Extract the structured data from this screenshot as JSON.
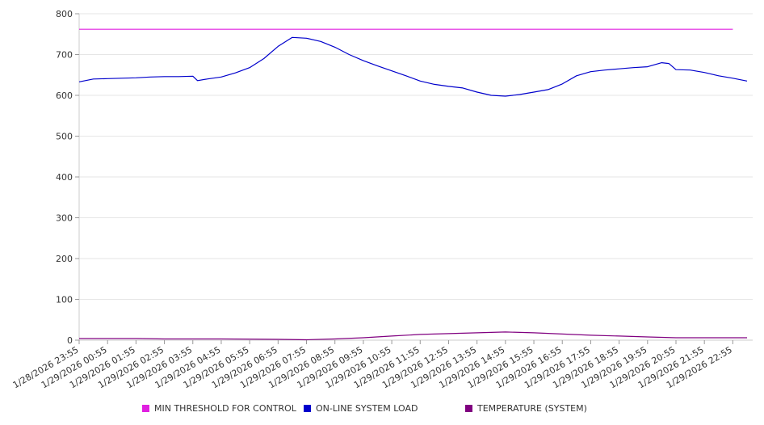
{
  "chart_data": {
    "type": "line",
    "title": "",
    "xlabel": "",
    "ylabel": "",
    "ylim": [
      0,
      800
    ],
    "yticks": [
      0,
      100,
      200,
      300,
      400,
      500,
      600,
      700,
      800
    ],
    "grid": true,
    "legend_position": "bottom",
    "x_tick_labels": [
      "1/28/2026 23:55",
      "1/29/2026 00:55",
      "1/29/2026 01:55",
      "1/29/2026 02:55",
      "1/29/2026 03:55",
      "1/29/2026 04:55",
      "1/29/2026 05:55",
      "1/29/2026 06:55",
      "1/29/2026 07:55",
      "1/29/2026 08:55",
      "1/29/2026 09:55",
      "1/29/2026 10:55",
      "1/29/2026 11:55",
      "1/29/2026 12:55",
      "1/29/2026 13:55",
      "1/29/2026 14:55",
      "1/29/2026 15:55",
      "1/29/2026 16:55",
      "1/29/2026 17:55",
      "1/29/2026 18:55",
      "1/29/2026 19:55",
      "1/29/2026 20:55",
      "1/29/2026 21:55",
      "1/29/2026 22:55"
    ],
    "series": [
      {
        "name": "MIN THRESHOLD FOR CONTROL",
        "color": "#e020e0",
        "x": [
          "1/28/2026 23:55",
          "1/29/2026 22:55"
        ],
        "y": [
          762,
          762
        ]
      },
      {
        "name": "ON-LINE SYSTEM LOAD",
        "color": "#0000cc",
        "x": [
          "1/28/2026 23:55",
          "1/29/2026 00:25",
          "1/29/2026 00:55",
          "1/29/2026 01:25",
          "1/29/2026 01:55",
          "1/29/2026 02:25",
          "1/29/2026 02:55",
          "1/29/2026 03:25",
          "1/29/2026 03:55",
          "1/29/2026 04:05",
          "1/29/2026 04:25",
          "1/29/2026 04:55",
          "1/29/2026 05:25",
          "1/29/2026 05:55",
          "1/29/2026 06:25",
          "1/29/2026 06:55",
          "1/29/2026 07:25",
          "1/29/2026 07:55",
          "1/29/2026 08:25",
          "1/29/2026 08:55",
          "1/29/2026 09:25",
          "1/29/2026 09:55",
          "1/29/2026 10:25",
          "1/29/2026 10:55",
          "1/29/2026 11:25",
          "1/29/2026 11:55",
          "1/29/2026 12:25",
          "1/29/2026 12:55",
          "1/29/2026 13:25",
          "1/29/2026 13:55",
          "1/29/2026 14:25",
          "1/29/2026 14:55",
          "1/29/2026 15:25",
          "1/29/2026 15:55",
          "1/29/2026 16:25",
          "1/29/2026 16:55",
          "1/29/2026 17:25",
          "1/29/2026 17:55",
          "1/29/2026 18:25",
          "1/29/2026 18:55",
          "1/29/2026 19:25",
          "1/29/2026 19:55",
          "1/29/2026 20:25",
          "1/29/2026 20:40",
          "1/29/2026 20:55",
          "1/29/2026 21:25",
          "1/29/2026 21:55",
          "1/29/2026 22:25",
          "1/29/2026 22:55",
          "1/29/2026 23:25"
        ],
        "y": [
          633,
          640,
          641,
          642,
          643,
          645,
          646,
          646,
          647,
          636,
          640,
          645,
          655,
          668,
          690,
          720,
          742,
          740,
          732,
          718,
          700,
          685,
          672,
          660,
          648,
          635,
          627,
          622,
          618,
          608,
          600,
          598,
          602,
          608,
          614,
          628,
          648,
          658,
          662,
          665,
          668,
          670,
          680,
          678,
          663,
          662,
          656,
          648,
          642,
          635
        ]
      },
      {
        "name": "TEMPERATURE (SYSTEM)",
        "color": "#800080",
        "x": [
          "1/28/2026 23:55",
          "1/29/2026 01:55",
          "1/29/2026 02:55",
          "1/29/2026 04:55",
          "1/29/2026 06:55",
          "1/29/2026 07:55",
          "1/29/2026 08:55",
          "1/29/2026 09:55",
          "1/29/2026 10:55",
          "1/29/2026 11:55",
          "1/29/2026 12:55",
          "1/29/2026 13:55",
          "1/29/2026 14:55",
          "1/29/2026 15:55",
          "1/29/2026 16:55",
          "1/29/2026 17:55",
          "1/29/2026 18:55",
          "1/29/2026 19:55",
          "1/29/2026 20:55",
          "1/29/2026 21:55",
          "1/29/2026 23:25"
        ],
        "y": [
          4,
          4,
          3,
          3,
          2,
          1,
          3,
          6,
          10,
          14,
          16,
          18,
          20,
          18,
          15,
          12,
          10,
          8,
          6,
          6,
          6
        ]
      }
    ]
  }
}
